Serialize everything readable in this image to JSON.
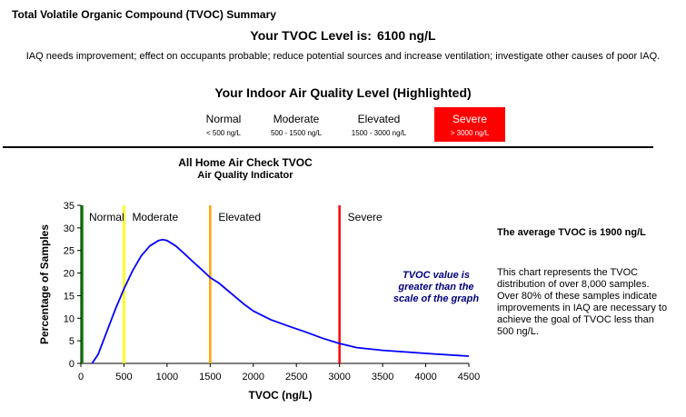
{
  "header": {
    "summary_title": "Total Volatile Organic Compound (TVOC) Summary",
    "tvoc_level_label": "Your TVOC Level is:",
    "tvoc_level_value": "6100  ng/L",
    "advice": "IAQ needs improvement; effect on occupants probable; reduce potential sources and increase ventilation; investigate other causes of poor IAQ.",
    "iaq_heading": "Your  Indoor Air Quality Level (Highlighted)"
  },
  "levels": [
    {
      "name": "Normal",
      "range": "< 500 ng/L",
      "highlighted": false
    },
    {
      "name": "Moderate",
      "range": "500 - 1500 ng/L",
      "highlighted": false
    },
    {
      "name": "Elevated",
      "range": "1500 - 3000 ng/L",
      "highlighted": false
    },
    {
      "name": "Severe",
      "range": "> 3000 ng/L",
      "highlighted": true
    }
  ],
  "highlight_color": "#ff0000",
  "side_panel": {
    "heading": "The average TVOC is 1900 ng/L",
    "body": "This chart represents the TVOC distribution of over 8,000 samples.  Over 80% of these samples indicate improvements in IAQ are necessary to achieve the goal of TVOC less than 500 ng/L."
  },
  "chart_data": {
    "type": "line",
    "title": "All Home Air Check TVOC",
    "subtitle": "Air Quality Indicator",
    "xlabel": "TVOC (ng/L)",
    "ylabel": "Percentage of Samples",
    "xlim": [
      0,
      4500
    ],
    "ylim": [
      0,
      35
    ],
    "x_ticks": [
      "0",
      "500",
      "1000",
      "1500",
      "2000",
      "2500",
      "3000",
      "3500",
      "4000",
      "4500"
    ],
    "y_ticks": [
      "0",
      "5",
      "10",
      "15",
      "20",
      "25",
      "30",
      "35"
    ],
    "grid": false,
    "series": [
      {
        "color": "#0000ff",
        "x": [
          130,
          200,
          300,
          400,
          500,
          600,
          700,
          800,
          900,
          950,
          1000,
          1100,
          1200,
          1300,
          1400,
          1500,
          1600,
          1700,
          1800,
          1900,
          2000,
          2200,
          2400,
          2600,
          2800,
          3000,
          3200,
          3500,
          3800,
          4100,
          4500
        ],
        "y": [
          0,
          2,
          7,
          12,
          16.5,
          20.5,
          23.8,
          26,
          27.2,
          27.4,
          27.2,
          26,
          24.3,
          22.5,
          20.8,
          19,
          17.8,
          16.2,
          14.6,
          13,
          11.6,
          9.7,
          8.3,
          7,
          5.6,
          4.4,
          3.5,
          2.9,
          2.5,
          2.1,
          1.6
        ]
      }
    ],
    "thresholds": [
      {
        "x": 0,
        "color": "#008000",
        "label": "Normal"
      },
      {
        "x": 500,
        "color": "#ffff00",
        "label": "Moderate"
      },
      {
        "x": 1500,
        "color": "#ffa500",
        "label": "Elevated"
      },
      {
        "x": 3000,
        "color": "#ff0000",
        "label": "Severe"
      }
    ],
    "annotation": {
      "text": [
        "TVOC value is",
        "greater than the",
        "scale of the graph"
      ],
      "color": "#000080"
    }
  }
}
